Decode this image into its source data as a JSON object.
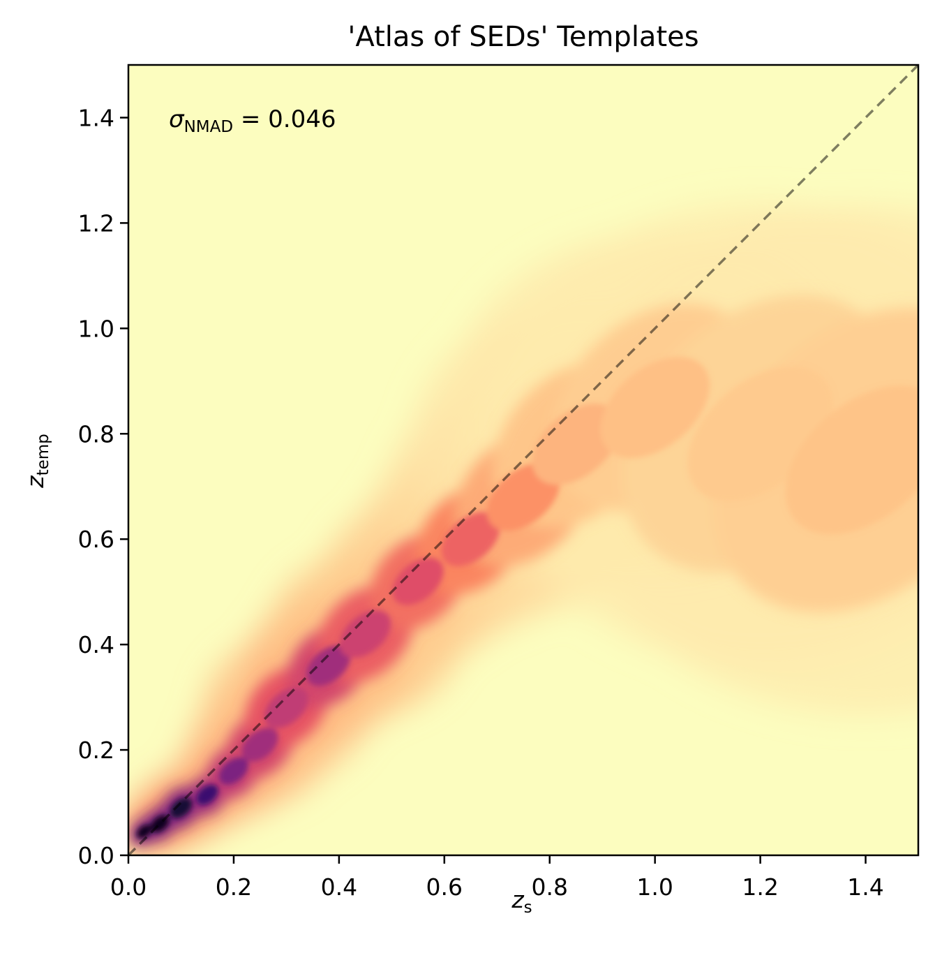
{
  "chart_data": {
    "type": "heatmap",
    "title": "'Atlas of SEDs' Templates",
    "xlabel": {
      "main": "z",
      "sub": "s"
    },
    "ylabel": {
      "main": "z",
      "sub": "temp"
    },
    "xlim": [
      0.0,
      1.5
    ],
    "ylim": [
      0.0,
      1.5
    ],
    "x_ticks": [
      "0.0",
      "0.2",
      "0.4",
      "0.6",
      "0.8",
      "1.0",
      "1.2",
      "1.4"
    ],
    "y_ticks": [
      "0.0",
      "0.2",
      "0.4",
      "0.6",
      "0.8",
      "1.0",
      "1.2",
      "1.4"
    ],
    "x_tick_values": [
      0.0,
      0.2,
      0.4,
      0.6,
      0.8,
      1.0,
      1.2,
      1.4
    ],
    "y_tick_values": [
      0.0,
      0.2,
      0.4,
      0.6,
      0.8,
      1.0,
      1.2,
      1.4
    ],
    "colormap": "magma_r",
    "background_color": "#fcfdbf",
    "grid": false,
    "annotation": {
      "symbol": "σ",
      "sub": "NMAD",
      "text": " = 0.046"
    },
    "reference_line": {
      "style": "dashed",
      "color": "#000000",
      "from": [
        0.0,
        0.0
      ],
      "to": [
        1.5,
        1.5
      ]
    },
    "density_ridge": [
      {
        "x": 0.03,
        "y": 0.045,
        "width": 0.02,
        "density": 1.0
      },
      {
        "x": 0.06,
        "y": 0.06,
        "width": 0.025,
        "density": 1.0
      },
      {
        "x": 0.1,
        "y": 0.09,
        "width": 0.03,
        "density": 0.97
      },
      {
        "x": 0.15,
        "y": 0.115,
        "width": 0.03,
        "density": 0.9
      },
      {
        "x": 0.2,
        "y": 0.16,
        "width": 0.04,
        "density": 0.78
      },
      {
        "x": 0.25,
        "y": 0.21,
        "width": 0.05,
        "density": 0.7
      },
      {
        "x": 0.3,
        "y": 0.28,
        "width": 0.06,
        "density": 0.62
      },
      {
        "x": 0.38,
        "y": 0.36,
        "width": 0.06,
        "density": 0.7
      },
      {
        "x": 0.45,
        "y": 0.42,
        "width": 0.07,
        "density": 0.58
      },
      {
        "x": 0.55,
        "y": 0.52,
        "width": 0.07,
        "density": 0.52
      },
      {
        "x": 0.65,
        "y": 0.6,
        "width": 0.08,
        "density": 0.45
      },
      {
        "x": 0.75,
        "y": 0.68,
        "width": 0.1,
        "density": 0.33
      },
      {
        "x": 0.85,
        "y": 0.78,
        "width": 0.12,
        "density": 0.24
      },
      {
        "x": 1.0,
        "y": 0.85,
        "width": 0.15,
        "density": 0.21
      },
      {
        "x": 1.2,
        "y": 0.8,
        "width": 0.2,
        "density": 0.18
      },
      {
        "x": 1.4,
        "y": 0.75,
        "width": 0.22,
        "density": 0.2
      }
    ]
  }
}
